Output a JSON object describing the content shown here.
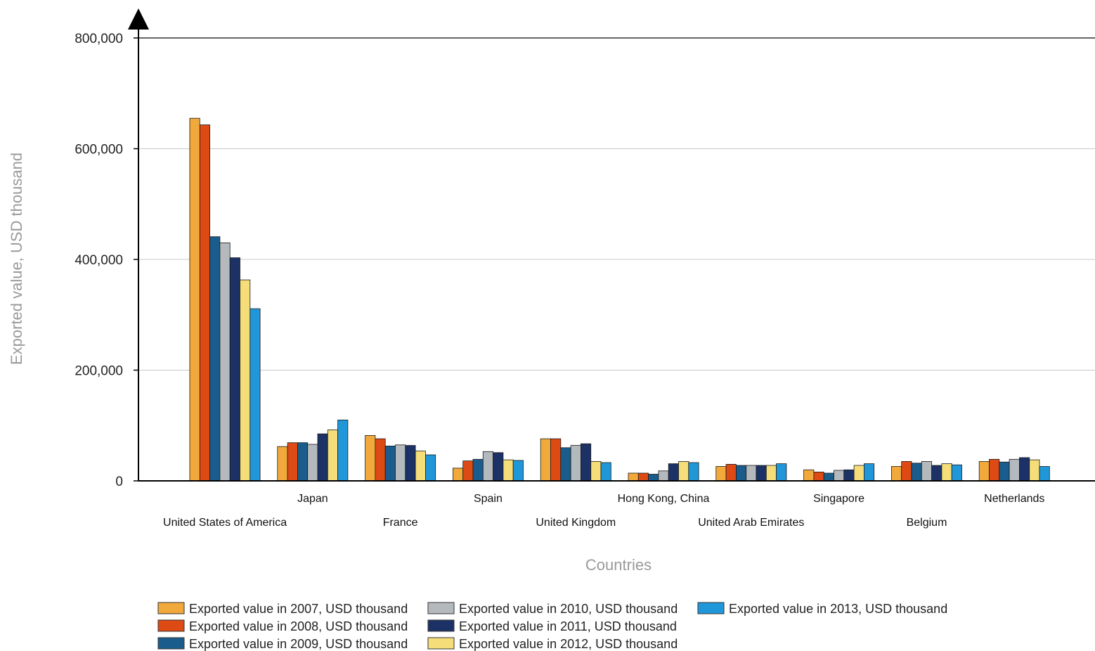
{
  "chart_data": {
    "type": "bar",
    "title": "",
    "xlabel": "Countries",
    "ylabel": "Exported value, USD thousand",
    "ylim": [
      0,
      800000
    ],
    "yticks": [
      0,
      200000,
      400000,
      600000,
      800000
    ],
    "ytick_labels": [
      "0",
      "200,000",
      "400,000",
      "600,000",
      "800,000"
    ],
    "grid": true,
    "legend_position": "bottom",
    "categories": [
      "United States of America",
      "Japan",
      "France",
      "Spain",
      "United Kingdom",
      "Hong Kong, China",
      "United Arab Emirates",
      "Singapore",
      "Belgium",
      "Netherlands"
    ],
    "series": [
      {
        "name": "Exported value in 2007, USD thousand",
        "color": "#f2a93b",
        "values": [
          655000,
          62000,
          82000,
          23000,
          76000,
          14000,
          26000,
          20000,
          26000,
          35000
        ]
      },
      {
        "name": "Exported value in 2008, USD thousand",
        "color": "#de4a14",
        "values": [
          643000,
          69000,
          76000,
          36000,
          76000,
          14000,
          30000,
          16000,
          35000,
          39000
        ]
      },
      {
        "name": "Exported value in 2009, USD thousand",
        "color": "#1a5c8c",
        "values": [
          441000,
          69000,
          63000,
          39000,
          60000,
          12000,
          28000,
          14000,
          32000,
          34000
        ]
      },
      {
        "name": "Exported value in 2010, USD thousand",
        "color": "#b4b9bd",
        "values": [
          430000,
          66000,
          65000,
          53000,
          64000,
          18000,
          28000,
          19000,
          35000,
          39000
        ]
      },
      {
        "name": "Exported value in 2011, USD thousand",
        "color": "#1c3266",
        "values": [
          403000,
          85000,
          64000,
          51000,
          67000,
          31000,
          28000,
          20000,
          28000,
          42000
        ]
      },
      {
        "name": "Exported value in 2012, USD thousand",
        "color": "#f5de7a",
        "values": [
          363000,
          92000,
          54000,
          38000,
          35000,
          35000,
          28000,
          28000,
          31000,
          38000
        ]
      },
      {
        "name": "Exported value in 2013, USD thousand",
        "color": "#2097d9",
        "values": [
          311000,
          110000,
          47000,
          37000,
          33000,
          33000,
          31000,
          31000,
          29000,
          26000
        ]
      }
    ]
  }
}
